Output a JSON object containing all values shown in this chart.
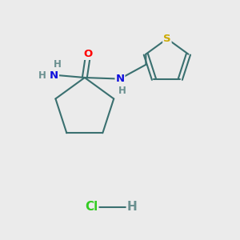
{
  "background_color": "#ebebeb",
  "bond_color": "#3a7070",
  "bond_width": 1.5,
  "atom_colors": {
    "O": "#ff0000",
    "N": "#1010dd",
    "S": "#ccaa00",
    "H": "#6a9090",
    "Cl": "#33cc22"
  },
  "font_size": 9.5,
  "small_font_size": 8.5
}
